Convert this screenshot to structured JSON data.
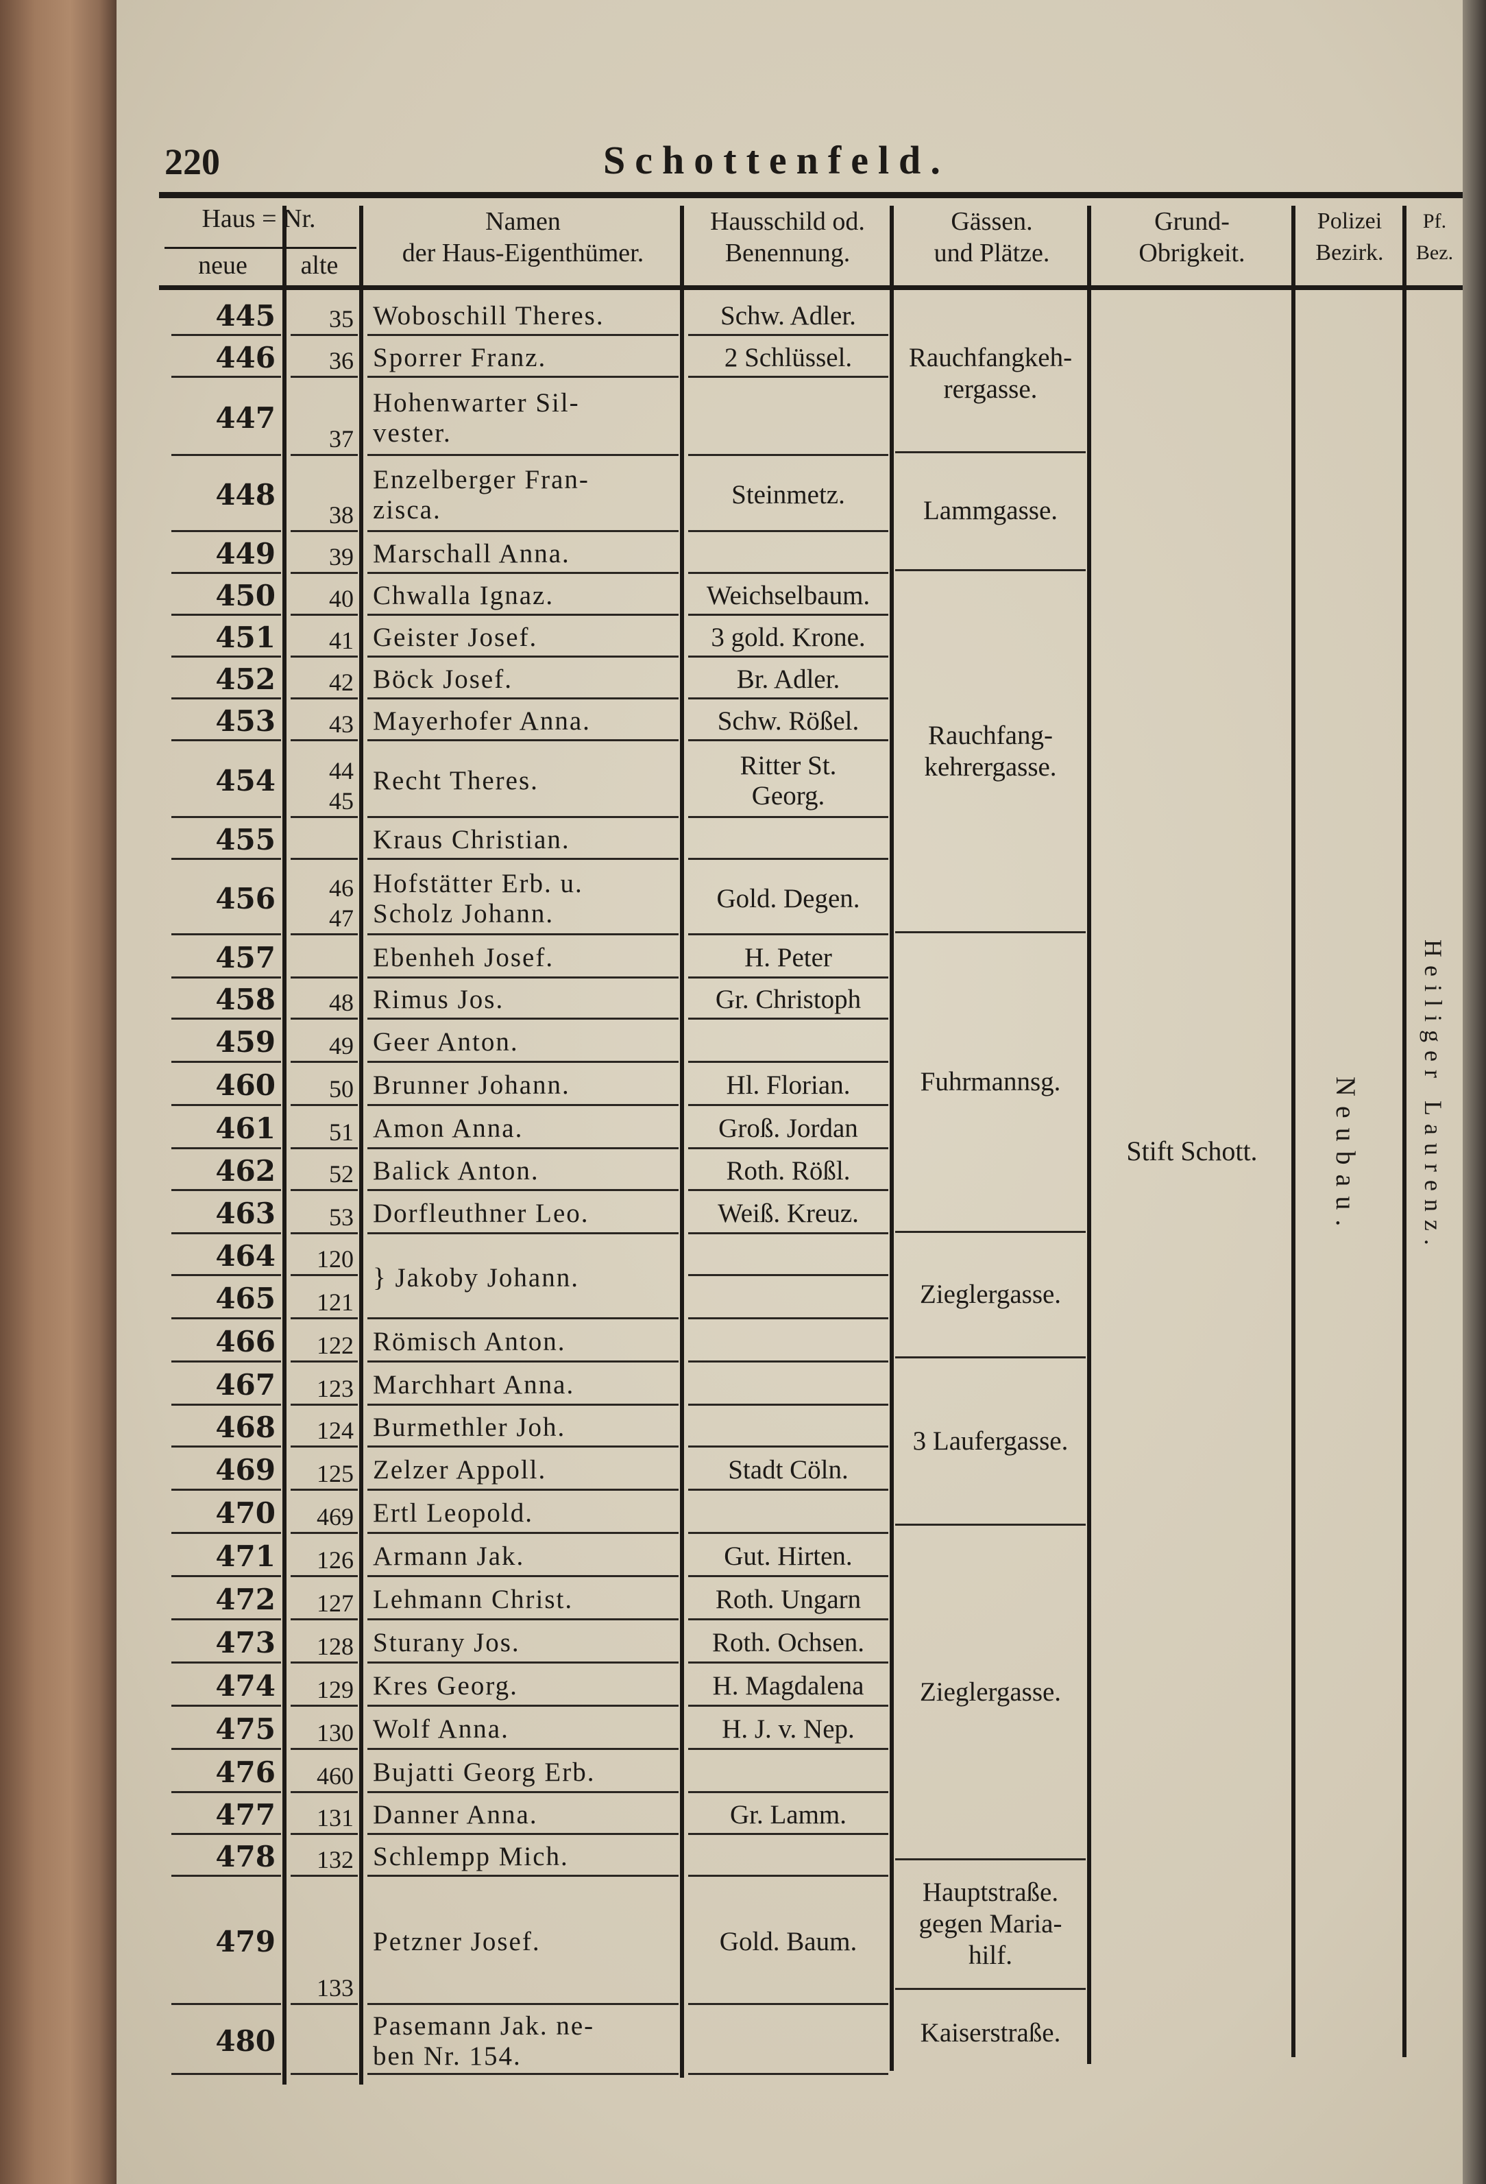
{
  "page": {
    "number": "220",
    "title": "Schottenfeld."
  },
  "headers": {
    "haus_nr": "Haus = Nr.",
    "neue": "neue",
    "alte": "alte",
    "namen": "Namen\nder Haus-Eigenthümer.",
    "hausschild": "Hausschild od.\nBenennung.",
    "gassen": "Gässen.\nund Plätze.",
    "grund": "Grund-\nObrigkeit.",
    "polizei": "Polizei\nBezirk.",
    "pf": "Pf.\nBez."
  },
  "rows": [
    {
      "neue": "445",
      "alte": "35",
      "name": "Woboschill Theres.",
      "sign": "Schw. Adler."
    },
    {
      "neue": "446",
      "alte": "36",
      "name": "Sporrer Franz.",
      "sign": "2 Schlüssel."
    },
    {
      "neue": "447",
      "alte": "37",
      "name": "Hohenwarter Sil-\n   vester.",
      "sign": ""
    },
    {
      "neue": "448",
      "alte": "38",
      "name": "Enzelberger Fran-\n   zisca.",
      "sign": "Steinmetz."
    },
    {
      "neue": "449",
      "alte": "39",
      "name": "Marschall Anna.",
      "sign": ""
    },
    {
      "neue": "450",
      "alte": "40",
      "name": "Chwalla Ignaz.",
      "sign": "Weichselbaum."
    },
    {
      "neue": "451",
      "alte": "41",
      "name": "Geister Josef.",
      "sign": "3 gold. Krone."
    },
    {
      "neue": "452",
      "alte": "42",
      "name": "Böck Josef.",
      "sign": "Br. Adler."
    },
    {
      "neue": "453",
      "alte": "43",
      "name": "Mayerhofer Anna.",
      "sign": "Schw. Rößel."
    },
    {
      "neue": "454",
      "alte": "44\n45",
      "name": "Recht Theres.",
      "sign": "Ritter St.\nGeorg."
    },
    {
      "neue": "455",
      "alte": "",
      "name": "Kraus Christian.",
      "sign": ""
    },
    {
      "neue": "456",
      "alte": "46\n47",
      "name": "Hofstätter Erb. u.\n   Scholz Johann.",
      "sign": "Gold. Degen."
    },
    {
      "neue": "457",
      "alte": "",
      "name": "Ebenheh Josef.",
      "sign": "H. Peter"
    },
    {
      "neue": "458",
      "alte": "48",
      "name": "Rimus Jos.",
      "sign": "Gr. Christoph"
    },
    {
      "neue": "459",
      "alte": "49",
      "name": "Geer Anton.",
      "sign": ""
    },
    {
      "neue": "460",
      "alte": "50",
      "name": "Brunner Johann.",
      "sign": "Hl. Florian."
    },
    {
      "neue": "461",
      "alte": "51",
      "name": "Amon Anna.",
      "sign": "Groß. Jordan"
    },
    {
      "neue": "462",
      "alte": "52",
      "name": "Balick Anton.",
      "sign": "Roth. Rößl."
    },
    {
      "neue": "463",
      "alte": "53",
      "name": "Dorfleuthner Leo.",
      "sign": "Weiß. Kreuz."
    },
    {
      "neue": "464",
      "alte": "120",
      "name": "} Jakoby Johann.",
      "sign": ""
    },
    {
      "neue": "465",
      "alte": "121",
      "name": "",
      "sign": ""
    },
    {
      "neue": "466",
      "alte": "122",
      "name": "Römisch Anton.",
      "sign": ""
    },
    {
      "neue": "467",
      "alte": "123",
      "name": "Marchhart Anna.",
      "sign": ""
    },
    {
      "neue": "468",
      "alte": "124",
      "name": "Burmethler Joh.",
      "sign": ""
    },
    {
      "neue": "469",
      "alte": "125",
      "name": "Zelzer Appoll.",
      "sign": "Stadt Cöln."
    },
    {
      "neue": "470",
      "alte": "469",
      "name": "Ertl Leopold.",
      "sign": ""
    },
    {
      "neue": "471",
      "alte": "126",
      "name": "Armann Jak.",
      "sign": "Gut. Hirten."
    },
    {
      "neue": "472",
      "alte": "127",
      "name": "Lehmann Christ.",
      "sign": "Roth. Ungarn"
    },
    {
      "neue": "473",
      "alte": "128",
      "name": "Sturany Jos.",
      "sign": "Roth. Ochsen."
    },
    {
      "neue": "474",
      "alte": "129",
      "name": "Kres Georg.",
      "sign": "H. Magdalena"
    },
    {
      "neue": "475",
      "alte": "130",
      "name": "Wolf Anna.",
      "sign": "H. J. v. Nep."
    },
    {
      "neue": "476",
      "alte": "460",
      "name": "Bujatti Georg Erb.",
      "sign": ""
    },
    {
      "neue": "477",
      "alte": "131",
      "name": "Danner Anna.",
      "sign": "Gr. Lamm."
    },
    {
      "neue": "478",
      "alte": "132",
      "name": "Schlempp Mich.",
      "sign": ""
    },
    {
      "neue": "479",
      "alte": "133",
      "name": "Petzner Josef.",
      "sign": "Gold. Baum."
    },
    {
      "neue": "480",
      "alte": "",
      "name": "Pasemann Jak. ne-\n   ben Nr. 154.",
      "sign": ""
    }
  ],
  "streets": [
    "Rauchfangkeh-\nrergasse.",
    "Lammgasse.",
    "Rauchfang-\nkehrergasse.",
    "Fuhrmannsg.",
    "Zieglergasse.",
    "3 Laufergasse.",
    "Zieglergasse.",
    "Hauptstraße.\ngegen Maria-\nhilf.",
    "Kaiserstraße."
  ],
  "grund_obrigkeit": "Stift Schott.",
  "polizei_bezirk": "Neubau.",
  "pfarr_bezirk": "Heiliger Laurenz."
}
